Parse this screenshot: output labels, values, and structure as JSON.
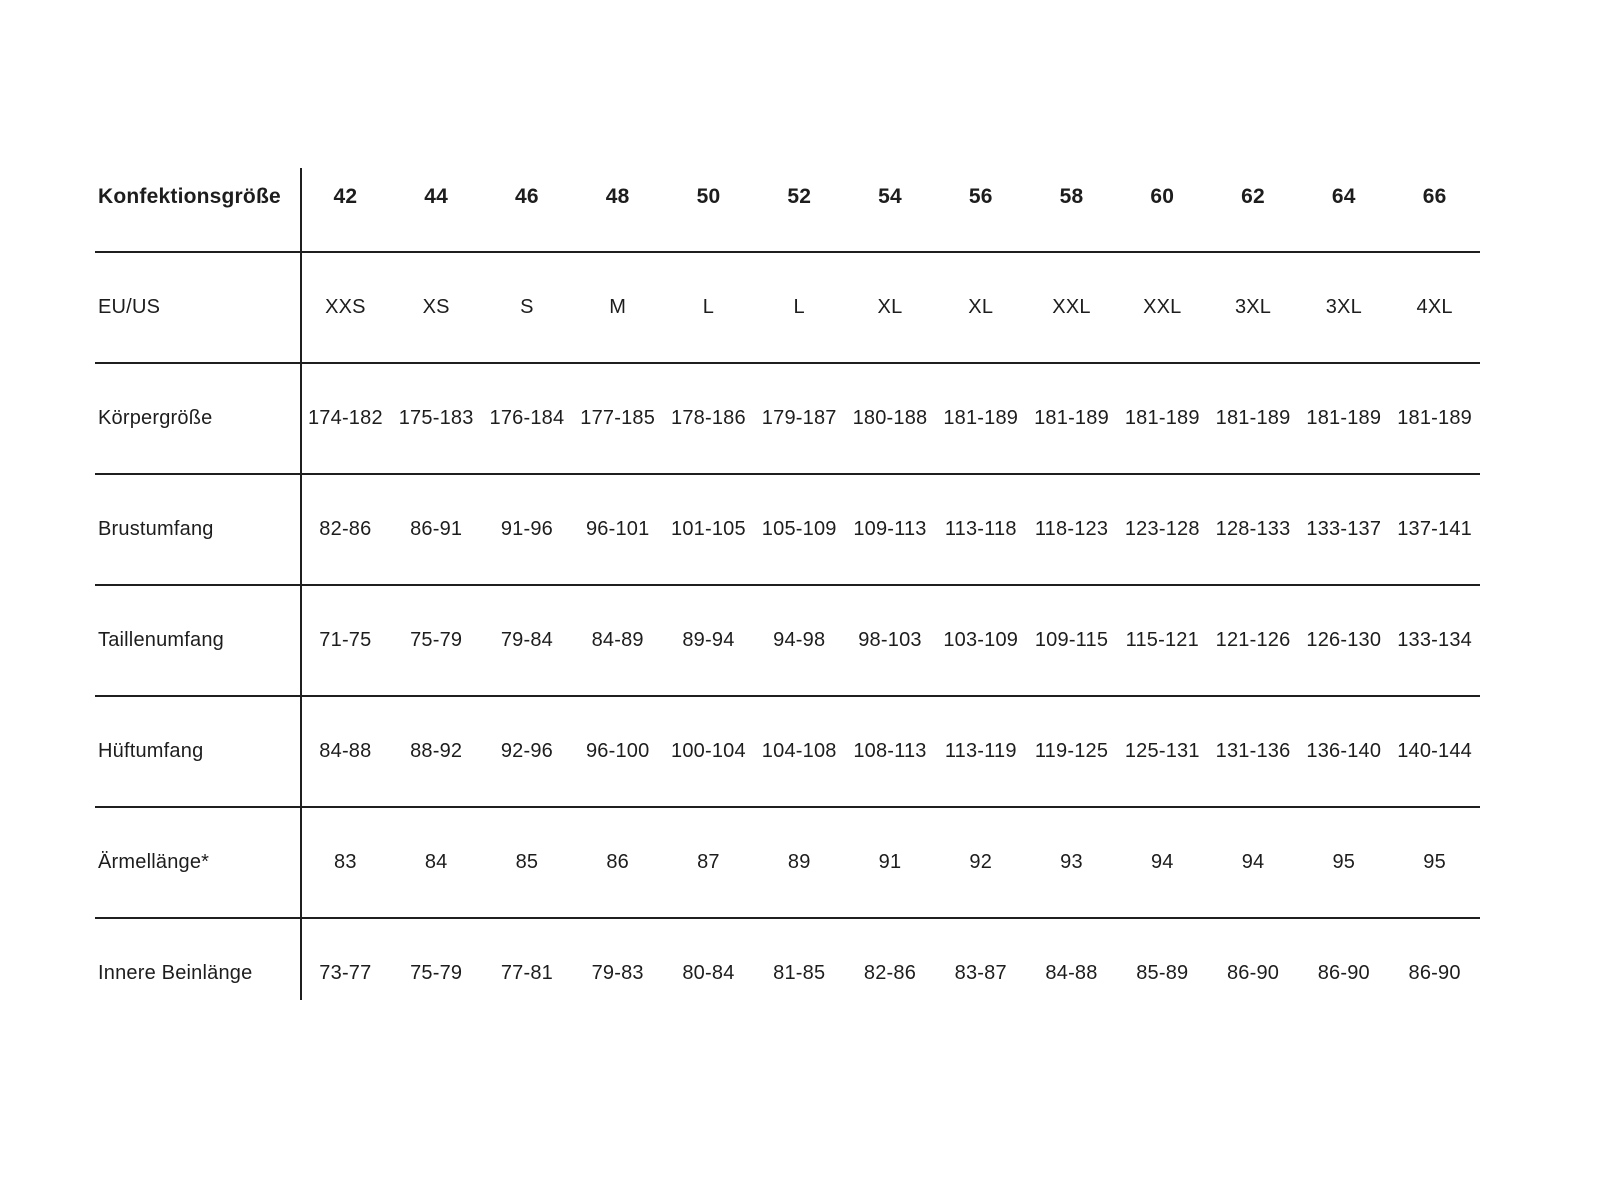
{
  "table": {
    "header": {
      "label": "Konfektionsgröße",
      "sizes": [
        "42",
        "44",
        "46",
        "48",
        "50",
        "52",
        "54",
        "56",
        "58",
        "60",
        "62",
        "64",
        "66"
      ]
    },
    "rows": [
      {
        "label": "EU/US",
        "values": [
          "XXS",
          "XS",
          "S",
          "M",
          "L",
          "L",
          "XL",
          "XL",
          "XXL",
          "XXL",
          "3XL",
          "3XL",
          "4XL"
        ]
      },
      {
        "label": "Körpergröße",
        "values": [
          "174-182",
          "175-183",
          "176-184",
          "177-185",
          "178-186",
          "179-187",
          "180-188",
          "181-189",
          "181-189",
          "181-189",
          "181-189",
          "181-189",
          "181-189"
        ]
      },
      {
        "label": "Brustumfang",
        "values": [
          "82-86",
          "86-91",
          "91-96",
          "96-101",
          "101-105",
          "105-109",
          "109-113",
          "113-118",
          "118-123",
          "123-128",
          "128-133",
          "133-137",
          "137-141"
        ]
      },
      {
        "label": "Taillenumfang",
        "values": [
          "71-75",
          "75-79",
          "79-84",
          "84-89",
          "89-94",
          "94-98",
          "98-103",
          "103-109",
          "109-115",
          "115-121",
          "121-126",
          "126-130",
          "133-134"
        ]
      },
      {
        "label": "Hüftumfang",
        "values": [
          "84-88",
          "88-92",
          "92-96",
          "96-100",
          "100-104",
          "104-108",
          "108-113",
          "113-119",
          "119-125",
          "125-131",
          "131-136",
          "136-140",
          "140-144"
        ]
      },
      {
        "label": "Ärmellänge*",
        "values": [
          "83",
          "84",
          "85",
          "86",
          "87",
          "89",
          "91",
          "92",
          "93",
          "94",
          "94",
          "95",
          "95"
        ]
      },
      {
        "label": "Innere Beinlänge",
        "values": [
          "73-77",
          "75-79",
          "77-81",
          "79-83",
          "80-84",
          "81-85",
          "82-86",
          "83-87",
          "84-88",
          "85-89",
          "86-90",
          "86-90",
          "86-90"
        ]
      }
    ],
    "colors": {
      "text": "#1d1d1d",
      "line": "#1f1f1f",
      "background": "#ffffff"
    }
  }
}
